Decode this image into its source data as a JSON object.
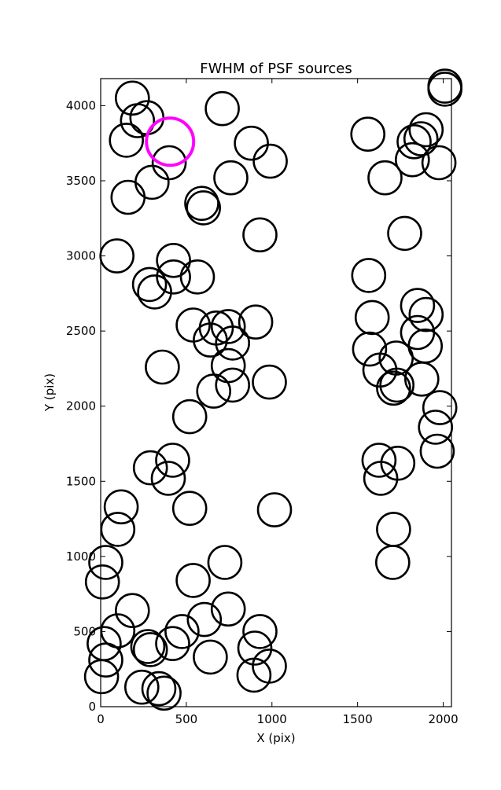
{
  "chart_data": {
    "type": "scatter",
    "title": "FWHM of PSF sources",
    "xlabel": "X (pix)",
    "ylabel": "Y (pix)",
    "xlim": [
      0,
      2048
    ],
    "ylim": [
      0,
      4180
    ],
    "xticks": [
      0,
      500,
      1000,
      1500,
      2000
    ],
    "yticks": [
      0,
      500,
      1000,
      1500,
      2000,
      2500,
      3000,
      3500,
      4000
    ],
    "grid": false,
    "marker": "open-circle",
    "colors": {
      "sources": "#000000",
      "highlight": "#ff00ff"
    },
    "series": [
      {
        "role": "sources",
        "points": [
          [
            185,
            4050
          ],
          [
            270,
            3920
          ],
          [
            215,
            3900
          ],
          [
            150,
            3770
          ],
          [
            400,
            3620
          ],
          [
            300,
            3490
          ],
          [
            160,
            3390
          ],
          [
            710,
            3980
          ],
          [
            880,
            3750
          ],
          [
            760,
            3520
          ],
          [
            990,
            3630
          ],
          [
            590,
            3350
          ],
          [
            600,
            3320
          ],
          [
            930,
            3140
          ],
          [
            95,
            3000
          ],
          [
            425,
            2970
          ],
          [
            425,
            2860
          ],
          [
            285,
            2810
          ],
          [
            315,
            2760
          ],
          [
            565,
            2860
          ],
          [
            540,
            2540
          ],
          [
            640,
            2440
          ],
          [
            675,
            2520
          ],
          [
            745,
            2530
          ],
          [
            770,
            2420
          ],
          [
            905,
            2560
          ],
          [
            745,
            2270
          ],
          [
            770,
            2140
          ],
          [
            985,
            2160
          ],
          [
            660,
            2100
          ],
          [
            360,
            2260
          ],
          [
            520,
            1930
          ],
          [
            420,
            1640
          ],
          [
            290,
            1590
          ],
          [
            395,
            1520
          ],
          [
            120,
            1330
          ],
          [
            100,
            1180
          ],
          [
            520,
            1320
          ],
          [
            1015,
            1310
          ],
          [
            30,
            960
          ],
          [
            10,
            830
          ],
          [
            540,
            840
          ],
          [
            725,
            960
          ],
          [
            185,
            640
          ],
          [
            745,
            650
          ],
          [
            605,
            580
          ],
          [
            475,
            500
          ],
          [
            420,
            420
          ],
          [
            100,
            505
          ],
          [
            20,
            420
          ],
          [
            275,
            400
          ],
          [
            290,
            380
          ],
          [
            30,
            310
          ],
          [
            640,
            330
          ],
          [
            930,
            500
          ],
          [
            900,
            390
          ],
          [
            895,
            210
          ],
          [
            985,
            270
          ],
          [
            5,
            200
          ],
          [
            240,
            130
          ],
          [
            340,
            120
          ],
          [
            370,
            90
          ],
          [
            1560,
            3810
          ],
          [
            1660,
            3520
          ],
          [
            1820,
            3640
          ],
          [
            1830,
            3760
          ],
          [
            1870,
            3780
          ],
          [
            1900,
            3840
          ],
          [
            1975,
            3620
          ],
          [
            2010,
            4110
          ],
          [
            2010,
            4130
          ],
          [
            1775,
            3150
          ],
          [
            1565,
            2870
          ],
          [
            1585,
            2590
          ],
          [
            1570,
            2380
          ],
          [
            1630,
            2240
          ],
          [
            1725,
            2320
          ],
          [
            1730,
            2140
          ],
          [
            1710,
            2120
          ],
          [
            1850,
            2670
          ],
          [
            1850,
            2490
          ],
          [
            1900,
            2610
          ],
          [
            1895,
            2400
          ],
          [
            1875,
            2180
          ],
          [
            1980,
            1990
          ],
          [
            1955,
            1860
          ],
          [
            1965,
            1700
          ],
          [
            1625,
            1640
          ],
          [
            1635,
            1520
          ],
          [
            1735,
            1620
          ],
          [
            1710,
            1180
          ],
          [
            1705,
            960
          ]
        ]
      },
      {
        "role": "highlight",
        "points": [
          [
            405,
            3760
          ]
        ]
      }
    ]
  }
}
